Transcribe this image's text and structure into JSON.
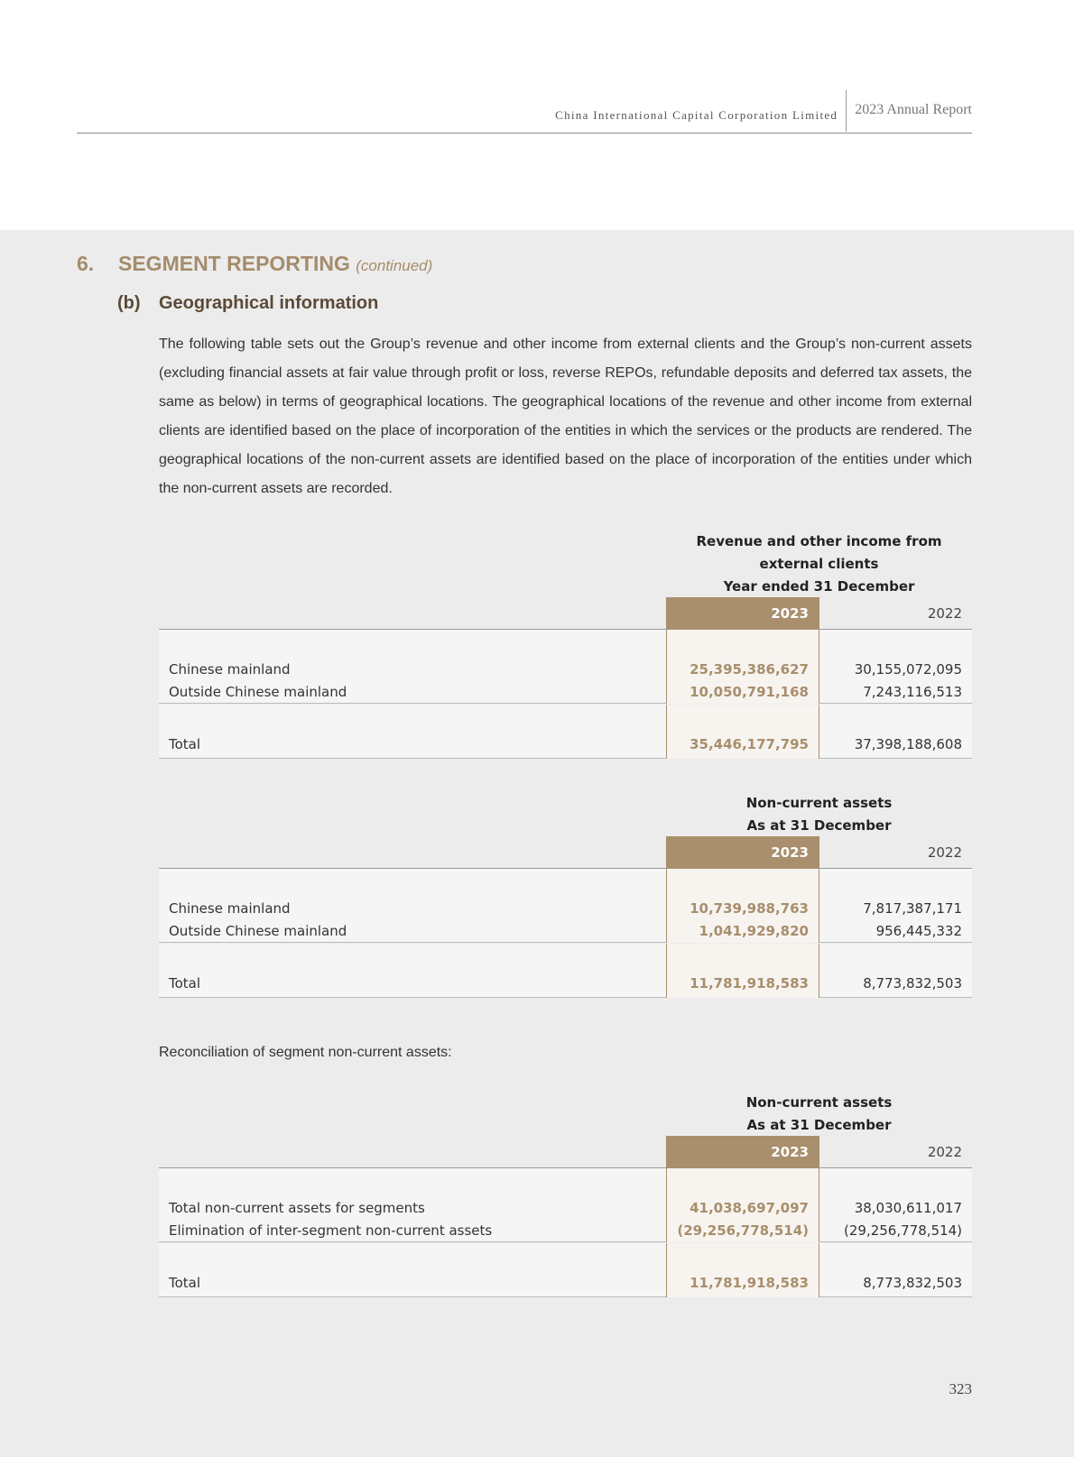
{
  "header": {
    "company": "China International Capital Corporation Limited",
    "report": "2023 Annual Report"
  },
  "section": {
    "number": "6.",
    "title": "SEGMENT REPORTING",
    "continued": "(continued)"
  },
  "subsection": {
    "number": "(b)",
    "title": "Geographical information"
  },
  "intro": "The following table sets out the Group’s revenue and other income from external clients and the Group’s non-current assets (excluding financial assets at fair value through profit or loss, reverse REPOs, refundable deposits and deferred tax assets, the same as below) in terms of geographical locations. The geographical locations of the revenue and other income from external clients are identified based on the place of incorporation of the entities in which the services or the products are rendered. The geographical locations of the non-current assets are identified based on the place of incorporation of the entities under which the non-current assets are recorded.",
  "reconciliation_label": "Reconciliation of segment non-current assets:",
  "tables": [
    {
      "heading": [
        "Revenue and other income from",
        "external clients",
        "Year ended 31 December"
      ],
      "years": [
        "2023",
        "2022"
      ],
      "rows": [
        [
          "Chinese mainland",
          "25,395,386,627",
          "30,155,072,095"
        ],
        [
          "Outside Chinese mainland",
          "10,050,791,168",
          "7,243,116,513"
        ]
      ],
      "total": [
        "Total",
        "35,446,177,795",
        "37,398,188,608"
      ]
    },
    {
      "heading": [
        "Non-current assets",
        "As at 31 December"
      ],
      "years": [
        "2023",
        "2022"
      ],
      "rows": [
        [
          "Chinese mainland",
          "10,739,988,763",
          "7,817,387,171"
        ],
        [
          "Outside Chinese mainland",
          "1,041,929,820",
          "956,445,332"
        ]
      ],
      "total": [
        "Total",
        "11,781,918,583",
        "8,773,832,503"
      ]
    },
    {
      "heading": [
        "Non-current assets",
        "As at 31 December"
      ],
      "years": [
        "2023",
        "2022"
      ],
      "rows": [
        [
          "Total non-current assets for segments",
          "41,038,697,097",
          "38,030,611,017"
        ],
        [
          "Elimination of inter-segment non-current assets",
          "(29,256,778,514)",
          "(29,256,778,514)"
        ]
      ],
      "total": [
        "Total",
        "11,781,918,583",
        "8,773,832,503"
      ]
    }
  ],
  "page_number": "323",
  "colors": {
    "accent": "#a98f6d",
    "heading": "#a58c6b",
    "subheading": "#5b4a37"
  }
}
